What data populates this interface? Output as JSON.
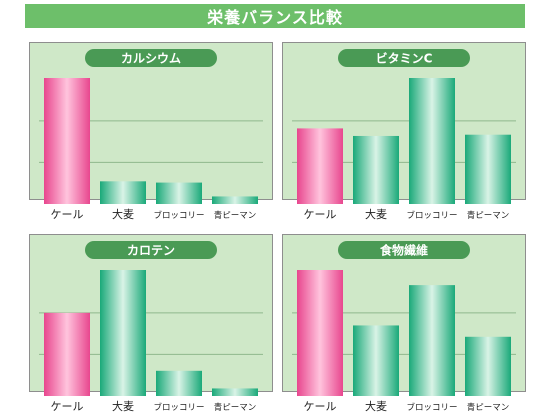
{
  "title": "栄養バランス比較",
  "colors": {
    "panel_bg": "#cfe8c8",
    "panel_border": "#8e8e8e",
    "grid": "#8fb98d",
    "pill_bg": "#4a9a55",
    "pill_text": "#ffffff",
    "kale_dark": "#e8468e",
    "kale_light": "#ffc4dd",
    "other_dark": "#1aa979",
    "other_light": "#d9f3e6"
  },
  "chart_data": [
    {
      "type": "bar",
      "title": "カルシウム",
      "categories": [
        "ケール",
        "大麦",
        "ブロッコリー",
        "青ピーマン"
      ],
      "values": [
        100,
        18,
        17,
        6
      ],
      "ylim": [
        0,
        100
      ],
      "grid": true
    },
    {
      "type": "bar",
      "title": "ビタミンC",
      "categories": [
        "ケール",
        "大麦",
        "ブロッコリー",
        "青ピーマン"
      ],
      "values": [
        60,
        54,
        100,
        55
      ],
      "ylim": [
        0,
        100
      ],
      "grid": true
    },
    {
      "type": "bar",
      "title": "カロテン",
      "categories": [
        "ケール",
        "大麦",
        "ブロッコリー",
        "青ピーマン"
      ],
      "values": [
        66,
        100,
        20,
        6
      ],
      "ylim": [
        0,
        100
      ],
      "grid": true
    },
    {
      "type": "bar",
      "title": "食物繊維",
      "categories": [
        "ケール",
        "大麦",
        "ブロッコリー",
        "青ピーマン"
      ],
      "values": [
        100,
        56,
        88,
        47
      ],
      "ylim": [
        0,
        100
      ],
      "grid": true
    }
  ]
}
